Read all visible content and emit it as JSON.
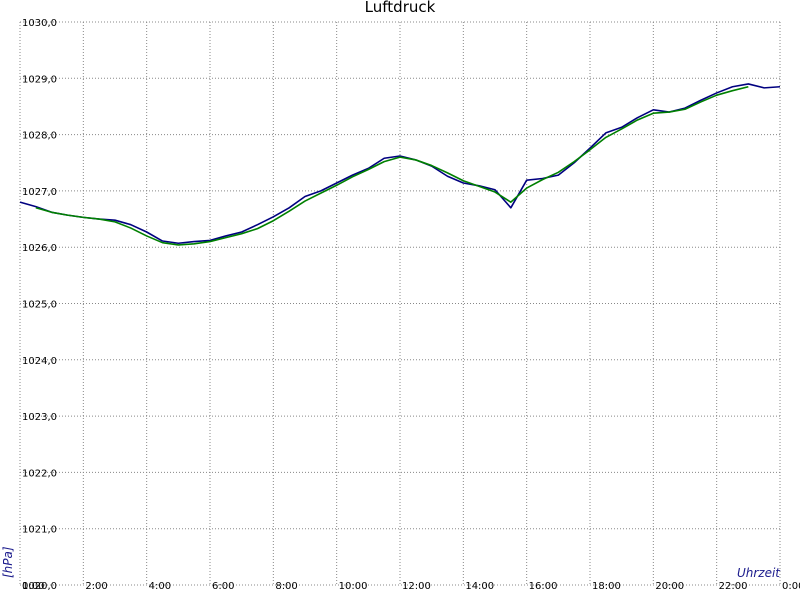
{
  "chart_data": {
    "type": "line",
    "title": "Luftdruck",
    "y_label": "[hPa]",
    "x_label": "Uhrzeit",
    "x": [
      0,
      0.5,
      1,
      1.5,
      2,
      2.5,
      3,
      3.5,
      4,
      4.5,
      5,
      5.5,
      6,
      6.5,
      7,
      7.5,
      8,
      8.5,
      9,
      9.5,
      10,
      10.5,
      11,
      11.5,
      12,
      12.5,
      13,
      13.5,
      14,
      14.5,
      15,
      15.5,
      16,
      16.5,
      17,
      17.5,
      18,
      18.5,
      19,
      19.5,
      20,
      20.5,
      21,
      21.5,
      22,
      22.5,
      23,
      23.5,
      24
    ],
    "series": [
      {
        "color": "#000080",
        "values": [
          1026.8,
          1026.72,
          1026.62,
          1026.57,
          1026.53,
          1026.5,
          1026.48,
          1026.4,
          1026.27,
          1026.11,
          1026.07,
          1026.1,
          1026.12,
          1026.2,
          1026.27,
          1026.4,
          1026.54,
          1026.7,
          1026.9,
          1027.0,
          1027.14,
          1027.28,
          1027.4,
          1027.58,
          1027.62,
          1027.55,
          1027.44,
          1027.26,
          1027.14,
          1027.09,
          1027.02,
          1026.7,
          1027.19,
          1027.22,
          1027.28,
          1027.5,
          1027.76,
          1028.03,
          1028.13,
          1028.3,
          1028.44,
          1028.4,
          1028.47,
          1028.61,
          1028.74,
          1028.85,
          1028.9,
          1028.83,
          1028.85
        ]
      },
      {
        "color": "#008000",
        "values": [
          null,
          1026.7,
          1026.62,
          1026.57,
          1026.53,
          1026.5,
          1026.45,
          1026.34,
          1026.2,
          1026.08,
          1026.04,
          1026.06,
          1026.1,
          1026.17,
          1026.24,
          1026.33,
          1026.47,
          1026.64,
          1026.82,
          1026.96,
          1027.1,
          1027.25,
          1027.38,
          1027.52,
          1027.6,
          1027.55,
          1027.45,
          1027.32,
          1027.18,
          1027.08,
          1026.98,
          1026.8,
          1027.05,
          1027.2,
          1027.33,
          1027.52,
          1027.73,
          1027.95,
          1028.1,
          1028.26,
          1028.38,
          1028.4,
          1028.45,
          1028.58,
          1028.7,
          1028.78,
          1028.85,
          null,
          null
        ]
      }
    ],
    "xlim": [
      0,
      24
    ],
    "xticks": [
      {
        "value": 0,
        "label": "0:00"
      },
      {
        "value": 2,
        "label": "2:00"
      },
      {
        "value": 4,
        "label": "4:00"
      },
      {
        "value": 6,
        "label": "6:00"
      },
      {
        "value": 8,
        "label": "8:00"
      },
      {
        "value": 10,
        "label": "10:00"
      },
      {
        "value": 12,
        "label": "12:00"
      },
      {
        "value": 14,
        "label": "14:00"
      },
      {
        "value": 16,
        "label": "16:00"
      },
      {
        "value": 18,
        "label": "18:00"
      },
      {
        "value": 20,
        "label": "20:00"
      },
      {
        "value": 22,
        "label": "22:00"
      },
      {
        "value": 24,
        "label": "0:00"
      }
    ],
    "ylim": [
      1020,
      1030
    ],
    "yticks": [
      {
        "value": 1020,
        "label": "1020,0"
      },
      {
        "value": 1021,
        "label": "1021,0"
      },
      {
        "value": 1022,
        "label": "1022,0"
      },
      {
        "value": 1023,
        "label": "1023,0"
      },
      {
        "value": 1024,
        "label": "1024,0"
      },
      {
        "value": 1025,
        "label": "1025,0"
      },
      {
        "value": 1026,
        "label": "1026,0"
      },
      {
        "value": 1027,
        "label": "1027,0"
      },
      {
        "value": 1028,
        "label": "1028,0"
      },
      {
        "value": 1029,
        "label": "1029,0"
      },
      {
        "value": 1030,
        "label": "1030,0"
      }
    ],
    "grid": true
  }
}
